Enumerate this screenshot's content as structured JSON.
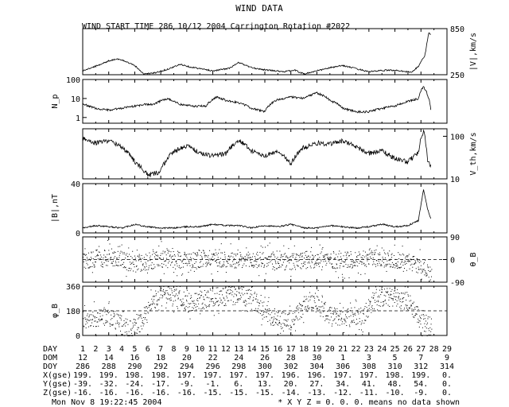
{
  "header": {
    "title": "WIND DATA",
    "subtitle": "WIND START TIME 286 10/12 2004 Carrington Rotation #2022"
  },
  "footer": {
    "timestamp": "Mon Nov  8 19:22:45 2004",
    "note": "* X Y Z = 0. 0. 0. means no data shown"
  },
  "chart_data": {
    "type": "line",
    "x_range_doy": [
      286,
      314
    ],
    "panels": [
      {
        "id": "velocity",
        "ylabel": "|V|,km/s",
        "label_side": "right",
        "yscale": "linear",
        "ylim": [
          250,
          850
        ],
        "ticks_left": [],
        "ticks_right": [
          "850",
          "250"
        ],
        "points": [
          [
            286,
            300
          ],
          [
            287,
            360
          ],
          [
            288,
            430
          ],
          [
            288.6,
            455
          ],
          [
            289.4,
            420
          ],
          [
            290,
            370
          ],
          [
            290.7,
            260
          ],
          [
            291.6,
            275
          ],
          [
            292.5,
            320
          ],
          [
            293.5,
            385
          ],
          [
            294.3,
            350
          ],
          [
            295,
            330
          ],
          [
            296,
            300
          ],
          [
            297.3,
            335
          ],
          [
            298,
            410
          ],
          [
            299,
            340
          ],
          [
            300.2,
            310
          ],
          [
            301.5,
            290
          ],
          [
            302.3,
            310
          ],
          [
            303,
            260
          ],
          [
            304,
            300
          ],
          [
            305,
            340
          ],
          [
            306,
            370
          ],
          [
            307,
            330
          ],
          [
            308,
            290
          ],
          [
            309.5,
            310
          ],
          [
            310.5,
            300
          ],
          [
            311.3,
            280
          ],
          [
            311.8,
            360
          ],
          [
            312.3,
            500
          ],
          [
            312.6,
            800
          ],
          [
            312.8,
            760
          ]
        ]
      },
      {
        "id": "density",
        "ylabel": "N_p",
        "label_side": "left",
        "yscale": "log",
        "ylim": [
          0.5,
          100
        ],
        "ticks_left": [
          "100",
          "10",
          "1"
        ],
        "ticks_right": [],
        "points": [
          [
            286,
            5
          ],
          [
            287,
            3
          ],
          [
            288,
            2.5
          ],
          [
            289,
            3
          ],
          [
            290,
            4
          ],
          [
            290.8,
            5
          ],
          [
            291.5,
            5
          ],
          [
            292.5,
            10
          ],
          [
            293.5,
            5
          ],
          [
            294.5,
            4
          ],
          [
            295.5,
            4
          ],
          [
            296.3,
            12
          ],
          [
            297,
            8
          ],
          [
            298,
            6
          ],
          [
            299,
            3
          ],
          [
            300,
            2
          ],
          [
            301,
            9
          ],
          [
            302,
            12
          ],
          [
            303,
            10
          ],
          [
            304,
            20
          ],
          [
            305,
            8
          ],
          [
            306,
            3
          ],
          [
            307,
            2
          ],
          [
            308,
            2
          ],
          [
            309,
            3
          ],
          [
            310,
            4
          ],
          [
            311,
            7
          ],
          [
            311.8,
            10
          ],
          [
            312.2,
            40
          ],
          [
            312.5,
            15
          ],
          [
            312.8,
            0.5
          ]
        ]
      },
      {
        "id": "thermal_speed",
        "ylabel": "V_th,km/s",
        "label_side": "right",
        "yscale": "log",
        "ylim": [
          10,
          150
        ],
        "ticks_left": [],
        "ticks_right": [
          "100",
          "10"
        ],
        "points": [
          [
            286,
            90
          ],
          [
            287,
            70
          ],
          [
            288,
            80
          ],
          [
            289,
            55
          ],
          [
            290,
            25
          ],
          [
            291,
            12
          ],
          [
            292,
            15
          ],
          [
            293,
            45
          ],
          [
            294,
            60
          ],
          [
            295,
            40
          ],
          [
            296,
            35
          ],
          [
            297,
            40
          ],
          [
            298,
            80
          ],
          [
            299,
            45
          ],
          [
            300,
            35
          ],
          [
            301,
            45
          ],
          [
            302,
            22
          ],
          [
            303,
            55
          ],
          [
            304,
            70
          ],
          [
            305,
            65
          ],
          [
            306,
            80
          ],
          [
            307,
            55
          ],
          [
            308,
            40
          ],
          [
            309,
            45
          ],
          [
            310,
            30
          ],
          [
            311,
            25
          ],
          [
            311.8,
            40
          ],
          [
            312.2,
            130
          ],
          [
            312.5,
            25
          ],
          [
            312.8,
            20
          ]
        ]
      },
      {
        "id": "magnetic_field",
        "ylabel": "|B|,nT",
        "label_side": "left",
        "yscale": "linear",
        "ylim": [
          0,
          40
        ],
        "ticks_left": [
          "40",
          "0"
        ],
        "ticks_right": [],
        "points": [
          [
            286,
            4
          ],
          [
            287,
            6
          ],
          [
            288,
            5
          ],
          [
            289,
            4
          ],
          [
            290,
            7
          ],
          [
            291,
            5
          ],
          [
            292,
            4
          ],
          [
            293,
            4
          ],
          [
            294,
            5
          ],
          [
            295,
            5
          ],
          [
            296,
            7
          ],
          [
            297,
            6
          ],
          [
            298,
            6
          ],
          [
            299,
            4
          ],
          [
            300,
            6
          ],
          [
            301,
            5
          ],
          [
            302,
            7
          ],
          [
            303,
            4
          ],
          [
            304,
            4
          ],
          [
            305,
            6
          ],
          [
            306,
            5
          ],
          [
            307,
            4
          ],
          [
            308,
            5
          ],
          [
            309,
            7
          ],
          [
            310,
            5
          ],
          [
            311,
            6
          ],
          [
            311.8,
            10
          ],
          [
            312.2,
            35
          ],
          [
            312.5,
            20
          ],
          [
            312.8,
            10
          ]
        ]
      },
      {
        "id": "theta_b",
        "ylabel": "θ_B",
        "label_side": "right",
        "yscale": "linear",
        "ylim": [
          -90,
          90
        ],
        "ticks_left": [],
        "ticks_right": [
          "90",
          "0",
          "-90"
        ],
        "scatter_seed": 11,
        "scatter_spread": 35,
        "points": [
          [
            286,
            0
          ],
          [
            288,
            10
          ],
          [
            290,
            -15
          ],
          [
            292,
            5
          ],
          [
            294,
            0
          ],
          [
            296,
            10
          ],
          [
            298,
            -5
          ],
          [
            300,
            0
          ],
          [
            302,
            -10
          ],
          [
            304,
            5
          ],
          [
            306,
            -5
          ],
          [
            308,
            10
          ],
          [
            310,
            0
          ],
          [
            312,
            -20
          ],
          [
            312.8,
            -60
          ]
        ]
      },
      {
        "id": "phi_b",
        "ylabel": "φ_B",
        "label_side": "left",
        "yscale": "linear",
        "ylim": [
          0,
          360
        ],
        "ticks_left": [
          "360",
          "180",
          "0"
        ],
        "ticks_right": [],
        "scatter_seed": 29,
        "scatter_spread": 70,
        "points": [
          [
            286,
            120
          ],
          [
            288,
            140
          ],
          [
            289.5,
            40
          ],
          [
            290.5,
            90
          ],
          [
            291.5,
            260
          ],
          [
            292.5,
            300
          ],
          [
            294,
            240
          ],
          [
            296,
            280
          ],
          [
            298,
            300
          ],
          [
            299.5,
            240
          ],
          [
            300.5,
            140
          ],
          [
            302,
            100
          ],
          [
            303.5,
            280
          ],
          [
            305,
            140
          ],
          [
            306,
            140
          ],
          [
            307.5,
            150
          ],
          [
            308.5,
            280
          ],
          [
            310,
            280
          ],
          [
            311,
            250
          ],
          [
            312,
            120
          ],
          [
            312.8,
            60
          ]
        ]
      }
    ],
    "x_axis_table": {
      "rows": [
        {
          "label": "DAY",
          "values": [
            "1",
            "2",
            "3",
            "4",
            "5",
            "6",
            "7",
            "8",
            "9",
            "10",
            "11",
            "12",
            "13",
            "14",
            "15",
            "16",
            "17",
            "18",
            "19",
            "20",
            "21",
            "22",
            "23",
            "24",
            "25",
            "26",
            "27",
            "28",
            "29"
          ]
        },
        {
          "label": "DOM",
          "values": [
            "12",
            "14",
            "16",
            "18",
            "20",
            "22",
            "24",
            "26",
            "28",
            "30",
            "1",
            "3",
            "5",
            "7",
            "9"
          ]
        },
        {
          "label": "DOY",
          "values": [
            "286",
            "288",
            "290",
            "292",
            "294",
            "296",
            "298",
            "300",
            "302",
            "304",
            "306",
            "308",
            "310",
            "312",
            "314"
          ]
        },
        {
          "label": "X(gse)",
          "values": [
            "199.",
            "199.",
            "198.",
            "198.",
            "197.",
            "197.",
            "197.",
            "197.",
            "196.",
            "196.",
            "197.",
            "197.",
            "198.",
            "199.",
            "0."
          ]
        },
        {
          "label": "Y(gse)",
          "values": [
            "-39.",
            "-32.",
            "-24.",
            "-17.",
            "-9.",
            "-1.",
            "6.",
            "13.",
            "20.",
            "27.",
            "34.",
            "41.",
            "48.",
            "54.",
            "0."
          ]
        },
        {
          "label": "Z(gse)",
          "values": [
            "-16.",
            "-16.",
            "-16.",
            "-16.",
            "-16.",
            "-15.",
            "-15.",
            "-15.",
            "-14.",
            "-13.",
            "-12.",
            "-11.",
            "-10.",
            "-9.",
            "0."
          ]
        }
      ]
    }
  }
}
